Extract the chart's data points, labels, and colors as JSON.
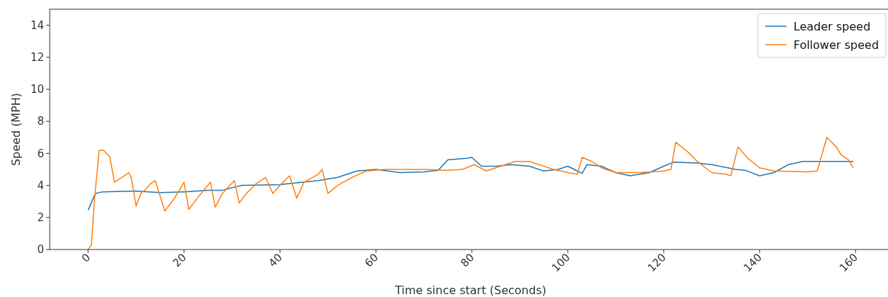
{
  "chart_data": {
    "type": "line",
    "xlabel": "Time since start (Seconds)",
    "ylabel": "Speed (MPH)",
    "xlim": [
      -8,
      167.5
    ],
    "ylim": [
      0,
      15
    ],
    "xticks": [
      0,
      20,
      40,
      60,
      80,
      100,
      120,
      140,
      160
    ],
    "yticks": [
      0,
      2,
      4,
      6,
      8,
      10,
      12,
      14
    ],
    "grid": false,
    "legend": "top right",
    "line_style": "solid",
    "marker": "none",
    "series": [
      {
        "name": "Leader speed",
        "color": "#1f77b4",
        "x": [
          0,
          1.5,
          3,
          10,
          15,
          20,
          25,
          28,
          32,
          40,
          43,
          48,
          52,
          56,
          60,
          65,
          70,
          73,
          75,
          79,
          80,
          82,
          85,
          88,
          92,
          95,
          98,
          100,
          102,
          103,
          104,
          107,
          110,
          113,
          117,
          120,
          122,
          127,
          130,
          135,
          137,
          140,
          143,
          146,
          149,
          155,
          159.5
        ],
        "values": [
          2.45,
          3.5,
          3.6,
          3.65,
          3.55,
          3.6,
          3.7,
          3.7,
          4.0,
          4.05,
          4.15,
          4.3,
          4.5,
          4.9,
          5.0,
          4.8,
          4.85,
          4.95,
          5.6,
          5.7,
          5.75,
          5.2,
          5.2,
          5.3,
          5.2,
          4.9,
          5.0,
          5.2,
          4.9,
          4.75,
          5.3,
          5.2,
          4.8,
          4.6,
          4.8,
          5.2,
          5.45,
          5.4,
          5.3,
          5.0,
          4.95,
          4.6,
          4.8,
          5.3,
          5.5,
          5.5,
          5.5
        ]
      },
      {
        "name": "Follower speed",
        "color": "#ff7f0e",
        "x": [
          0,
          0.7,
          1.3,
          2.3,
          3.2,
          4.5,
          5.5,
          7,
          8.5,
          9,
          10,
          11,
          11.8,
          13,
          14,
          16,
          18,
          20,
          21,
          23,
          25.5,
          26.5,
          28,
          30.5,
          31.5,
          33,
          35,
          37,
          38.5,
          40,
          42,
          43.5,
          45,
          48,
          48.8,
          50,
          52,
          55,
          58,
          62,
          66,
          70,
          75,
          78,
          80.5,
          83,
          86,
          89,
          92,
          94,
          97,
          100,
          102,
          103,
          105,
          107,
          110,
          115,
          120,
          121.5,
          122.5,
          125,
          127,
          130,
          133,
          134,
          135.5,
          137.5,
          140,
          143,
          150,
          152,
          154,
          156,
          157,
          158.5,
          159.5
        ],
        "values": [
          0,
          0.3,
          3,
          6.2,
          6.2,
          5.8,
          4.2,
          4.5,
          4.8,
          4.5,
          2.7,
          3.5,
          3.7,
          4.1,
          4.3,
          2.4,
          3.2,
          4.2,
          2.5,
          3.3,
          4.2,
          2.65,
          3.5,
          4.3,
          2.9,
          3.5,
          4.1,
          4.5,
          3.5,
          4.0,
          4.6,
          3.2,
          4.2,
          4.7,
          5.0,
          3.5,
          4.0,
          4.5,
          4.9,
          5.0,
          5.0,
          5.0,
          4.95,
          5.0,
          5.3,
          4.9,
          5.2,
          5.5,
          5.5,
          5.3,
          5.0,
          4.8,
          4.7,
          5.75,
          5.5,
          5.1,
          4.8,
          4.8,
          4.9,
          5.0,
          6.7,
          6.1,
          5.5,
          4.8,
          4.7,
          4.6,
          6.4,
          5.7,
          5.1,
          4.9,
          4.85,
          4.9,
          7.0,
          6.4,
          5.9,
          5.6,
          5.1
        ]
      }
    ]
  }
}
